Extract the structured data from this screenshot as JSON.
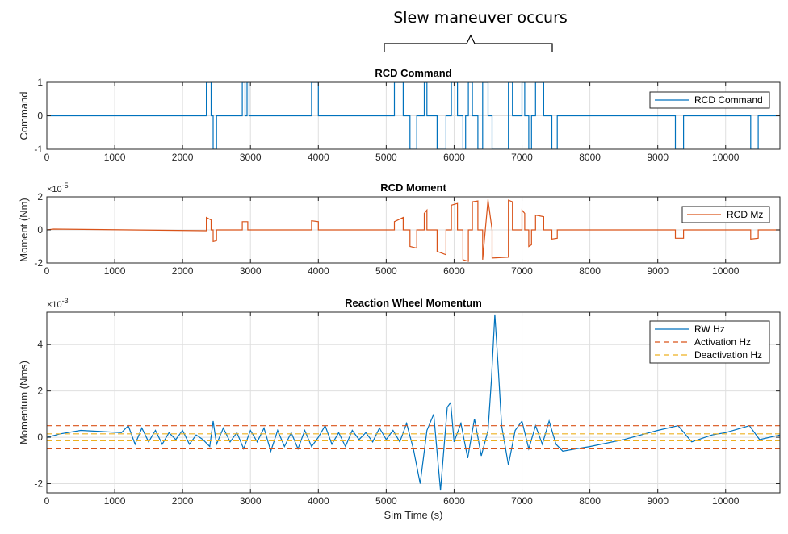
{
  "annotation": {
    "text": "Slew maneuver occurs"
  },
  "colors": {
    "blue": "#0072BD",
    "orange": "#D95319",
    "yellow": "#EDB120",
    "grid": "#dfdfdf",
    "axis": "#262626"
  },
  "chart_data": [
    {
      "type": "line",
      "title": "RCD Command",
      "ylabel": "Command",
      "xlabel": "",
      "xlim": [
        0,
        10800
      ],
      "ylim": [
        -1,
        1
      ],
      "xticks": [
        0,
        1000,
        2000,
        3000,
        4000,
        5000,
        6000,
        7000,
        8000,
        9000,
        10000
      ],
      "yticks": [
        -1,
        0,
        1
      ],
      "exponent": "",
      "grid": true,
      "legend": "right",
      "series": [
        {
          "name": "RCD Command",
          "color": "blue",
          "style": "solid",
          "x": [
            0,
            2350,
            2350,
            2420,
            2420,
            2450,
            2450,
            2500,
            2500,
            2880,
            2880,
            2920,
            2920,
            2950,
            2950,
            2980,
            2980,
            3900,
            3900,
            4000,
            4000,
            5120,
            5120,
            5250,
            5250,
            5350,
            5350,
            5450,
            5450,
            5560,
            5560,
            5600,
            5600,
            5750,
            5750,
            5880,
            5880,
            5960,
            5960,
            6050,
            6050,
            6130,
            6130,
            6170,
            6170,
            6210,
            6210,
            6270,
            6270,
            6350,
            6350,
            6420,
            6420,
            6500,
            6500,
            6560,
            6560,
            6800,
            6800,
            6860,
            6860,
            7000,
            7000,
            7040,
            7040,
            7100,
            7100,
            7140,
            7140,
            7200,
            7200,
            7320,
            7320,
            7440,
            7440,
            7520,
            7520,
            9260,
            9260,
            9380,
            9380,
            10370,
            10370,
            10480,
            10480,
            10800
          ],
          "y": [
            0,
            0,
            1,
            1,
            0,
            0,
            -1,
            -1,
            0,
            0,
            1,
            1,
            0,
            0,
            1,
            1,
            0,
            0,
            1,
            1,
            0,
            0,
            1,
            1,
            0,
            0,
            -1,
            -1,
            0,
            0,
            1,
            1,
            0,
            0,
            -1,
            -1,
            0,
            0,
            1,
            1,
            0,
            0,
            -1,
            -1,
            0,
            0,
            1,
            1,
            0,
            0,
            -1,
            -1,
            1,
            1,
            0,
            0,
            -1,
            -1,
            1,
            1,
            0,
            0,
            1,
            1,
            0,
            0,
            -1,
            -1,
            0,
            0,
            1,
            1,
            0,
            0,
            -1,
            -1,
            0,
            0,
            -1,
            -1,
            0,
            0,
            -1,
            -1,
            0,
            0
          ]
        }
      ]
    },
    {
      "type": "line",
      "title": "RCD Moment",
      "ylabel": "Moment (Nm)",
      "xlabel": "",
      "xlim": [
        0,
        10800
      ],
      "ylim": [
        -2,
        2
      ],
      "xticks": [
        0,
        1000,
        2000,
        3000,
        4000,
        5000,
        6000,
        7000,
        8000,
        9000,
        10000
      ],
      "yticks": [
        -2,
        0,
        2
      ],
      "exponent": "-5",
      "grid": true,
      "legend": "right",
      "series": [
        {
          "name": "RCD Mz",
          "color": "orange",
          "style": "solid",
          "x": [
            0,
            100,
            2350,
            2350,
            2420,
            2420,
            2450,
            2450,
            2500,
            2500,
            2880,
            2880,
            2960,
            2960,
            3900,
            3900,
            4000,
            4000,
            5120,
            5120,
            5250,
            5250,
            5350,
            5350,
            5450,
            5450,
            5560,
            5560,
            5600,
            5600,
            5750,
            5750,
            5880,
            5880,
            5960,
            5960,
            6050,
            6050,
            6130,
            6130,
            6210,
            6210,
            6270,
            6270,
            6350,
            6350,
            6420,
            6420,
            6500,
            6500,
            6560,
            6560,
            6800,
            6800,
            6860,
            6860,
            7000,
            7000,
            7040,
            7040,
            7100,
            7100,
            7140,
            7140,
            7200,
            7200,
            7320,
            7320,
            7440,
            7440,
            7520,
            7520,
            9260,
            9260,
            9380,
            9380,
            10370,
            10370,
            10480,
            10480,
            10800
          ],
          "y": [
            0,
            0.05,
            -0.05,
            0.75,
            0.6,
            0,
            0,
            -0.7,
            -0.65,
            0,
            0,
            0.5,
            0.5,
            0,
            0,
            0.55,
            0.5,
            0,
            0,
            0.5,
            0.75,
            0,
            0,
            -1.0,
            -1.1,
            0,
            0,
            1.0,
            1.2,
            0,
            0,
            -1.3,
            -1.5,
            0,
            0,
            1.5,
            1.6,
            0,
            0,
            -1.8,
            -1.9,
            0,
            0,
            1.7,
            1.75,
            0,
            0,
            -1.8,
            1.85,
            1.8,
            0,
            -1.7,
            -1.65,
            1.8,
            1.7,
            0,
            0,
            1.2,
            1.0,
            0,
            0,
            -1.0,
            -0.9,
            0,
            0,
            0.9,
            0.8,
            0,
            0,
            -0.55,
            -0.5,
            0,
            0,
            -0.5,
            -0.5,
            0,
            0,
            -0.55,
            -0.5,
            0,
            0
          ]
        }
      ]
    },
    {
      "type": "line",
      "title": "Reaction Wheel Momentum",
      "ylabel": "Momentum (Nms)",
      "xlabel": "Sim Time (s)",
      "xlim": [
        0,
        10800
      ],
      "ylim": [
        -2.4,
        5.4
      ],
      "xticks": [
        0,
        1000,
        2000,
        3000,
        4000,
        5000,
        6000,
        7000,
        8000,
        9000,
        10000
      ],
      "yticks": [
        -2,
        0,
        2,
        4
      ],
      "exponent": "-3",
      "grid": true,
      "legend": "top-right",
      "series": [
        {
          "name": "RW Hz",
          "color": "blue",
          "style": "solid",
          "x": [
            0,
            200,
            500,
            800,
            1100,
            1200,
            1300,
            1400,
            1500,
            1600,
            1700,
            1800,
            1900,
            2000,
            2100,
            2200,
            2300,
            2400,
            2450,
            2500,
            2600,
            2700,
            2800,
            2900,
            3000,
            3100,
            3200,
            3300,
            3400,
            3500,
            3600,
            3700,
            3800,
            3900,
            4000,
            4100,
            4200,
            4300,
            4400,
            4500,
            4600,
            4700,
            4800,
            4900,
            5000,
            5100,
            5200,
            5300,
            5400,
            5500,
            5600,
            5700,
            5800,
            5900,
            5950,
            6000,
            6100,
            6200,
            6300,
            6400,
            6500,
            6550,
            6600,
            6650,
            6700,
            6800,
            6900,
            7000,
            7100,
            7200,
            7300,
            7400,
            7500,
            7600,
            7800,
            8000,
            8500,
            9000,
            9300,
            9500,
            9800,
            10000,
            10350,
            10500,
            10800
          ],
          "y": [
            0.0,
            0.15,
            0.3,
            0.25,
            0.2,
            0.5,
            -0.3,
            0.4,
            -0.2,
            0.3,
            -0.3,
            0.2,
            -0.1,
            0.3,
            -0.3,
            0.1,
            -0.1,
            -0.4,
            0.7,
            -0.3,
            0.4,
            -0.2,
            0.2,
            -0.5,
            0.3,
            -0.2,
            0.4,
            -0.6,
            0.3,
            -0.4,
            0.2,
            -0.5,
            0.3,
            -0.4,
            0.0,
            0.5,
            -0.3,
            0.2,
            -0.4,
            0.3,
            -0.1,
            0.2,
            -0.2,
            0.4,
            -0.1,
            0.3,
            -0.2,
            0.6,
            -0.5,
            -2.0,
            0.3,
            1.0,
            -2.3,
            1.3,
            1.5,
            -0.2,
            0.6,
            -0.9,
            0.8,
            -0.8,
            0.3,
            2.5,
            5.3,
            3.0,
            0.5,
            -1.2,
            0.3,
            0.7,
            -0.5,
            0.5,
            -0.3,
            0.7,
            -0.3,
            -0.6,
            -0.5,
            -0.4,
            -0.1,
            0.3,
            0.5,
            -0.2,
            0.1,
            0.2,
            0.5,
            -0.1,
            0.1
          ]
        },
        {
          "name": "Activation Hz",
          "color": "orange",
          "style": "dashed",
          "x": [
            0,
            10800,
            null,
            0,
            10800
          ],
          "y": [
            0.5,
            0.5,
            null,
            -0.5,
            -0.5
          ]
        },
        {
          "name": "Deactivation Hz",
          "color": "yellow",
          "style": "dashed",
          "x": [
            0,
            10800,
            null,
            0,
            10800
          ],
          "y": [
            0.15,
            0.15,
            null,
            -0.15,
            -0.15
          ]
        }
      ]
    }
  ]
}
